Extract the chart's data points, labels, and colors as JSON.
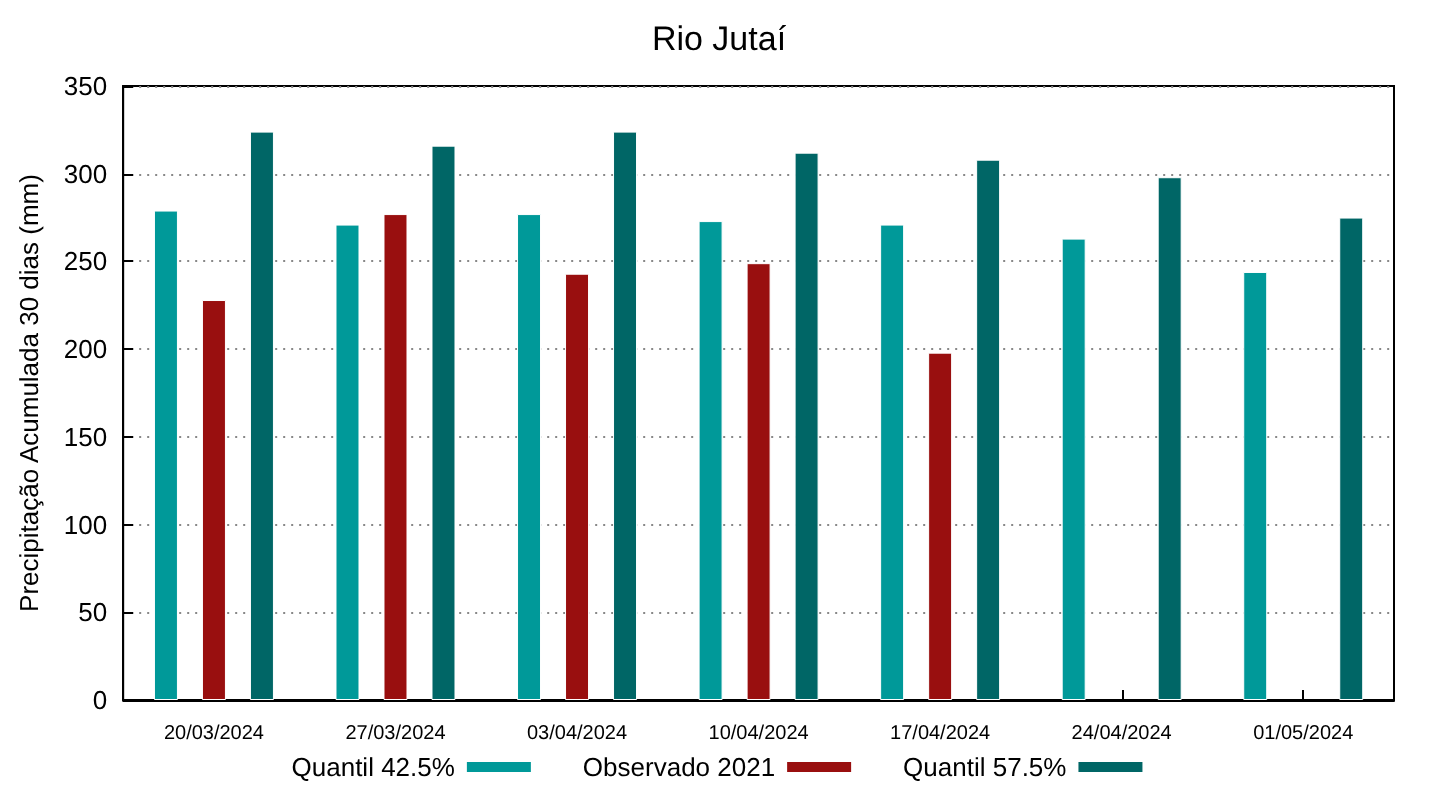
{
  "chart_data": {
    "type": "bar",
    "title": "Rio Jutaí",
    "ylabel": "Precipitação Acumulada 30 dias (mm)",
    "categories": [
      "20/03/2024",
      "27/03/2024",
      "03/04/2024",
      "10/04/2024",
      "17/04/2024",
      "24/04/2024",
      "01/05/2024"
    ],
    "series": [
      {
        "name": "Quantil 42.5%",
        "color": "#009999",
        "values": [
          279,
          271,
          277,
          273,
          271,
          263,
          244
        ]
      },
      {
        "name": "Observado 2021",
        "color": "#990f0f",
        "values": [
          228,
          277,
          243,
          249,
          198,
          null,
          null
        ]
      },
      {
        "name": "Quantil 57.5%",
        "color": "#006666",
        "values": [
          324,
          316,
          324,
          312,
          308,
          298,
          275
        ]
      }
    ],
    "ylim": [
      0,
      350
    ],
    "yticks": [
      0,
      50,
      100,
      150,
      200,
      250,
      300,
      350
    ],
    "grid": "y",
    "legend": "bottom"
  }
}
